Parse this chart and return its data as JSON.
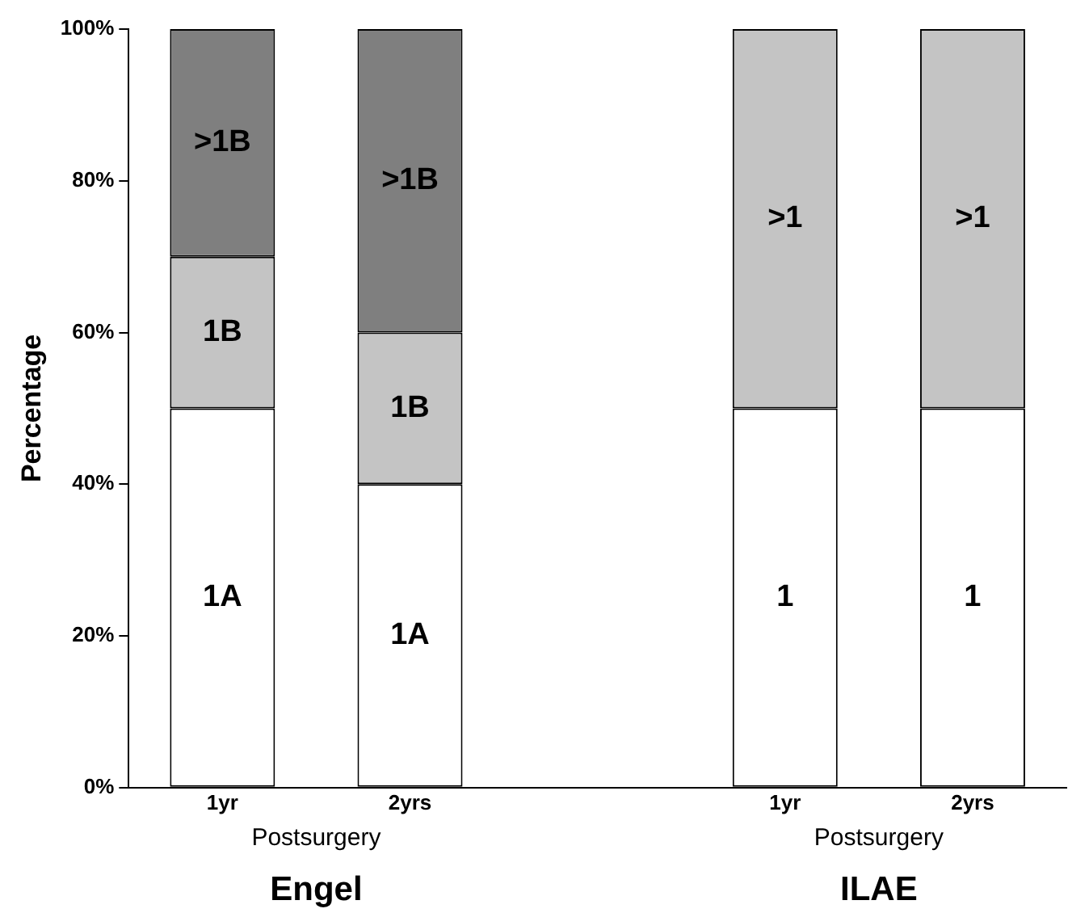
{
  "chart_data": {
    "type": "bar",
    "stacked": true,
    "ylabel": "Percentage",
    "categories": [
      "1yr",
      "2yrs",
      null,
      "1yr",
      "2yrs"
    ],
    "series": [
      {
        "name": "1A",
        "color": "#ffffff",
        "values": [
          50,
          40,
          null,
          null,
          null
        ]
      },
      {
        "name": "1",
        "color": "#ffffff",
        "values": [
          null,
          null,
          null,
          50,
          50
        ]
      },
      {
        "name": "1B",
        "color": "#c4c4c4",
        "values": [
          20,
          20,
          null,
          null,
          null
        ]
      },
      {
        "name": ">1",
        "color": "#c4c4c4",
        "values": [
          null,
          null,
          null,
          50,
          50
        ]
      },
      {
        "name": ">1B",
        "color": "#7f7f7f",
        "values": [
          30,
          40,
          null,
          null,
          null
        ]
      }
    ],
    "ylim": [
      0,
      100
    ],
    "yticks": [
      {
        "value": 0,
        "label": "0%"
      },
      {
        "value": 20,
        "label": "20%"
      },
      {
        "value": 40,
        "label": "40%"
      },
      {
        "value": 60,
        "label": "60%"
      },
      {
        "value": 80,
        "label": "80%"
      },
      {
        "value": 100,
        "label": "100%"
      }
    ],
    "grid": false,
    "legend": false,
    "annotations": [
      "Postsurgery",
      "Postsurgery",
      "Engel",
      "ILAE"
    ]
  }
}
